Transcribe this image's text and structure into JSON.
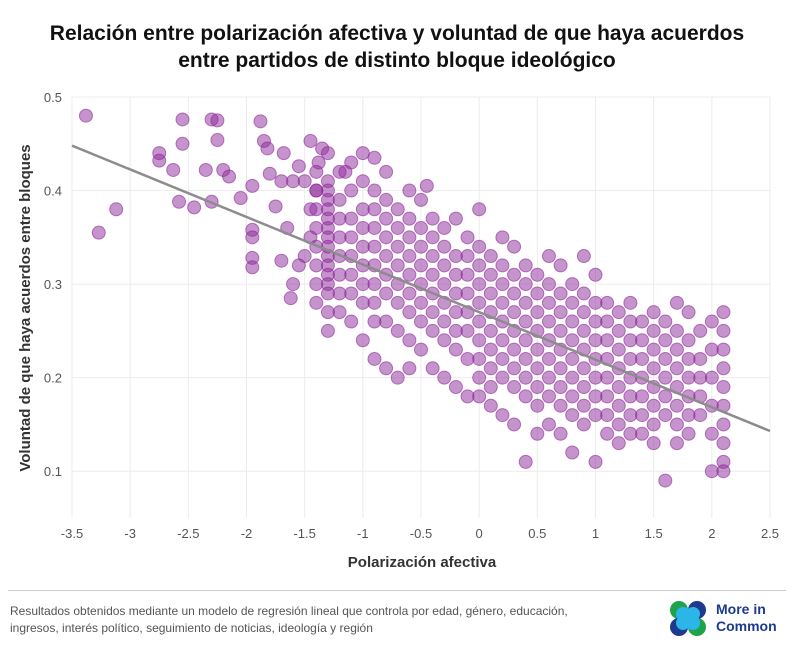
{
  "header": {
    "title_line1": "Relación entre polarización afectiva y voluntad de que haya acuerdos",
    "title_line2": "entre partidos de distinto bloque ideológico"
  },
  "footer": {
    "note_line1": "Resultados obtenidos mediante un modelo de regresión lineal que controla por edad, género, educación,",
    "note_line2": "ingresos, interés político, seguimiento de noticias, ideología y región",
    "logo_line1": "More in",
    "logo_line2": "Common"
  },
  "colors": {
    "points": "#8e2a9a",
    "trend": "#8c8c8c",
    "logo_text": "#1d3a8f"
  },
  "chart_data": {
    "type": "scatter",
    "title": "Relación entre polarización afectiva y voluntad de que haya acuerdos entre partidos de distinto bloque ideológico",
    "xlabel": "Polarización afectiva",
    "ylabel": "Voluntad de que haya acuerdos entre bloques",
    "xlim": [
      -3.5,
      2.5
    ],
    "ylim": [
      0.05,
      0.5
    ],
    "xticks": [
      "-3.5",
      "-3",
      "-2.5",
      "-2",
      "-1.5",
      "-1",
      "-0.5",
      "0",
      "0.5",
      "1",
      "1.5",
      "2",
      "2.5"
    ],
    "yticks": [
      "0.1",
      "0.2",
      "0.3",
      "0.4",
      "0.5"
    ],
    "grid": true,
    "trendline": {
      "x": [
        -3.5,
        2.5
      ],
      "y": [
        0.448,
        0.143
      ]
    },
    "outliers": [
      [
        -3.38,
        0.48
      ],
      [
        -3.27,
        0.355
      ],
      [
        -3.12,
        0.38
      ],
      [
        -2.75,
        0.44
      ],
      [
        -2.75,
        0.432
      ],
      [
        -2.63,
        0.422
      ],
      [
        -2.58,
        0.388
      ],
      [
        -2.55,
        0.476
      ],
      [
        -2.55,
        0.45
      ],
      [
        -2.45,
        0.382
      ],
      [
        -2.35,
        0.422
      ],
      [
        -2.3,
        0.476
      ],
      [
        -2.25,
        0.475
      ],
      [
        -2.25,
        0.454
      ],
      [
        -2.3,
        0.388
      ],
      [
        -2.2,
        0.422
      ],
      [
        -2.15,
        0.415
      ],
      [
        -2.05,
        0.392
      ],
      [
        -1.95,
        0.405
      ],
      [
        -1.95,
        0.358
      ],
      [
        -1.95,
        0.35
      ],
      [
        -1.95,
        0.328
      ],
      [
        -1.95,
        0.318
      ],
      [
        -1.88,
        0.474
      ],
      [
        -1.85,
        0.453
      ],
      [
        -1.8,
        0.418
      ],
      [
        -1.82,
        0.445
      ],
      [
        -1.75,
        0.383
      ],
      [
        -1.7,
        0.41
      ],
      [
        -1.68,
        0.44
      ],
      [
        -1.6,
        0.41
      ],
      [
        -1.55,
        0.426
      ],
      [
        -1.5,
        0.41
      ],
      [
        -1.45,
        0.453
      ],
      [
        -1.4,
        0.4
      ],
      [
        -1.38,
        0.43
      ],
      [
        -1.35,
        0.445
      ],
      [
        -1.65,
        0.36
      ],
      [
        -1.7,
        0.325
      ],
      [
        -1.6,
        0.3
      ],
      [
        -1.62,
        0.285
      ],
      [
        -1.55,
        0.32
      ],
      [
        -1.45,
        0.38
      ],
      [
        -1.45,
        0.35
      ],
      [
        -1.5,
        0.33
      ],
      [
        -0.45,
        0.405
      ],
      [
        -0.9,
        0.435
      ],
      [
        -1.15,
        0.42
      ]
    ],
    "columns": [
      {
        "x": -1.4,
        "y": [
          0.42,
          0.4,
          0.38,
          0.36,
          0.34,
          0.32,
          0.3,
          0.28
        ]
      },
      {
        "x": -1.3,
        "y": [
          0.44,
          0.41,
          0.4,
          0.39,
          0.38,
          0.37,
          0.36,
          0.35,
          0.34,
          0.33,
          0.32,
          0.31,
          0.3,
          0.29,
          0.27,
          0.25
        ]
      },
      {
        "x": -1.2,
        "y": [
          0.42,
          0.39,
          0.37,
          0.35,
          0.33,
          0.31,
          0.29,
          0.27
        ]
      },
      {
        "x": -1.1,
        "y": [
          0.43,
          0.4,
          0.37,
          0.35,
          0.33,
          0.31,
          0.29,
          0.26
        ]
      },
      {
        "x": -1.0,
        "y": [
          0.44,
          0.41,
          0.38,
          0.36,
          0.34,
          0.32,
          0.3,
          0.28,
          0.24
        ]
      },
      {
        "x": -0.9,
        "y": [
          0.4,
          0.38,
          0.36,
          0.34,
          0.32,
          0.3,
          0.28,
          0.26,
          0.22
        ]
      },
      {
        "x": -0.8,
        "y": [
          0.42,
          0.39,
          0.37,
          0.35,
          0.33,
          0.31,
          0.29,
          0.26,
          0.21
        ]
      },
      {
        "x": -0.7,
        "y": [
          0.38,
          0.36,
          0.34,
          0.32,
          0.3,
          0.28,
          0.25,
          0.2
        ]
      },
      {
        "x": -0.6,
        "y": [
          0.4,
          0.37,
          0.35,
          0.33,
          0.31,
          0.29,
          0.27,
          0.24,
          0.21
        ]
      },
      {
        "x": -0.5,
        "y": [
          0.39,
          0.36,
          0.34,
          0.32,
          0.3,
          0.28,
          0.26,
          0.23
        ]
      },
      {
        "x": -0.4,
        "y": [
          0.37,
          0.35,
          0.33,
          0.31,
          0.29,
          0.27,
          0.25,
          0.21
        ]
      },
      {
        "x": -0.3,
        "y": [
          0.36,
          0.34,
          0.32,
          0.3,
          0.28,
          0.26,
          0.24,
          0.2
        ]
      },
      {
        "x": -0.2,
        "y": [
          0.37,
          0.33,
          0.31,
          0.29,
          0.27,
          0.25,
          0.23,
          0.19
        ]
      },
      {
        "x": -0.1,
        "y": [
          0.35,
          0.33,
          0.31,
          0.29,
          0.27,
          0.25,
          0.22,
          0.18
        ]
      },
      {
        "x": 0.0,
        "y": [
          0.38,
          0.34,
          0.32,
          0.3,
          0.28,
          0.26,
          0.24,
          0.22,
          0.2,
          0.18
        ]
      },
      {
        "x": 0.1,
        "y": [
          0.33,
          0.31,
          0.29,
          0.27,
          0.25,
          0.23,
          0.21,
          0.19,
          0.17
        ]
      },
      {
        "x": 0.2,
        "y": [
          0.35,
          0.32,
          0.3,
          0.28,
          0.26,
          0.24,
          0.22,
          0.2,
          0.16
        ]
      },
      {
        "x": 0.3,
        "y": [
          0.34,
          0.31,
          0.29,
          0.27,
          0.25,
          0.23,
          0.21,
          0.19,
          0.15
        ]
      },
      {
        "x": 0.4,
        "y": [
          0.32,
          0.3,
          0.28,
          0.26,
          0.24,
          0.22,
          0.2,
          0.18,
          0.11
        ]
      },
      {
        "x": 0.5,
        "y": [
          0.31,
          0.29,
          0.27,
          0.25,
          0.23,
          0.21,
          0.19,
          0.17,
          0.14
        ]
      },
      {
        "x": 0.6,
        "y": [
          0.33,
          0.3,
          0.28,
          0.26,
          0.24,
          0.22,
          0.2,
          0.18,
          0.15
        ]
      },
      {
        "x": 0.7,
        "y": [
          0.32,
          0.29,
          0.27,
          0.25,
          0.23,
          0.21,
          0.19,
          0.17,
          0.14
        ]
      },
      {
        "x": 0.8,
        "y": [
          0.3,
          0.28,
          0.26,
          0.24,
          0.22,
          0.2,
          0.18,
          0.16,
          0.12
        ]
      },
      {
        "x": 0.9,
        "y": [
          0.33,
          0.29,
          0.27,
          0.25,
          0.23,
          0.21,
          0.19,
          0.17,
          0.15
        ]
      },
      {
        "x": 1.0,
        "y": [
          0.31,
          0.28,
          0.26,
          0.24,
          0.22,
          0.2,
          0.18,
          0.16,
          0.11
        ]
      },
      {
        "x": 1.1,
        "y": [
          0.28,
          0.26,
          0.24,
          0.22,
          0.2,
          0.18,
          0.16,
          0.14
        ]
      },
      {
        "x": 1.2,
        "y": [
          0.27,
          0.25,
          0.23,
          0.21,
          0.19,
          0.17,
          0.15,
          0.13
        ]
      },
      {
        "x": 1.3,
        "y": [
          0.28,
          0.26,
          0.24,
          0.22,
          0.2,
          0.18,
          0.16,
          0.14
        ]
      },
      {
        "x": 1.4,
        "y": [
          0.26,
          0.24,
          0.22,
          0.2,
          0.18,
          0.16,
          0.14
        ]
      },
      {
        "x": 1.5,
        "y": [
          0.27,
          0.25,
          0.23,
          0.21,
          0.19,
          0.17,
          0.15,
          0.13
        ]
      },
      {
        "x": 1.6,
        "y": [
          0.26,
          0.24,
          0.22,
          0.2,
          0.18,
          0.16,
          0.09
        ]
      },
      {
        "x": 1.7,
        "y": [
          0.28,
          0.25,
          0.23,
          0.21,
          0.19,
          0.17,
          0.15,
          0.13
        ]
      },
      {
        "x": 1.8,
        "y": [
          0.27,
          0.24,
          0.22,
          0.2,
          0.18,
          0.16,
          0.14
        ]
      },
      {
        "x": 1.9,
        "y": [
          0.25,
          0.22,
          0.2,
          0.18,
          0.16
        ]
      },
      {
        "x": 2.0,
        "y": [
          0.26,
          0.23,
          0.2,
          0.17,
          0.14,
          0.1
        ]
      },
      {
        "x": 2.1,
        "y": [
          0.27,
          0.25,
          0.23,
          0.21,
          0.19,
          0.17,
          0.15,
          0.13,
          0.11,
          0.1
        ]
      }
    ]
  }
}
